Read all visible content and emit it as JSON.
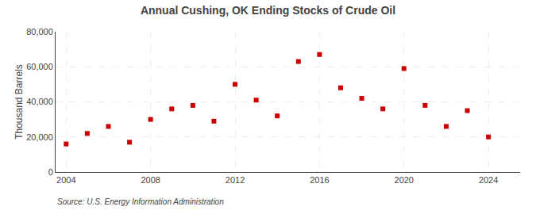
{
  "chart_data": {
    "type": "scatter",
    "title": "Annual Cushing, OK Ending Stocks of Crude Oil",
    "ylabel": "Thousand Barrels",
    "annotation": "Source: U.S. Energy Information Administration",
    "x": [
      2004,
      2005,
      2006,
      2007,
      2008,
      2009,
      2010,
      2011,
      2012,
      2013,
      2014,
      2015,
      2016,
      2017,
      2018,
      2019,
      2020,
      2021,
      2022,
      2023,
      2024
    ],
    "values": [
      16000,
      22000,
      26000,
      17000,
      30000,
      36000,
      38000,
      29000,
      50000,
      41000,
      32000,
      63000,
      67000,
      48000,
      42000,
      36000,
      59000,
      38000,
      26000,
      35000,
      20000
    ],
    "color": "#cc0000",
    "marker": "square",
    "xlim": [
      2003.5,
      2025.5
    ],
    "xticks": [
      2004,
      2008,
      2012,
      2016,
      2020,
      2024
    ],
    "ylim": [
      0,
      80000
    ],
    "yticks": [
      0,
      {
        "value": 20000,
        "label": "20,000"
      },
      {
        "value": 40000,
        "label": "40,000"
      },
      {
        "value": 60000,
        "label": "60,000"
      },
      {
        "value": 80000,
        "label": "80,000"
      }
    ],
    "grid": true
  }
}
